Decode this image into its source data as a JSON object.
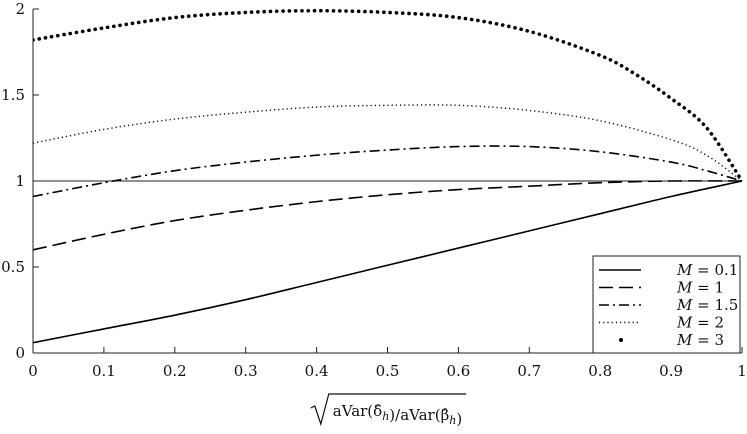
{
  "chart_data": {
    "type": "line",
    "title": "",
    "xlabel": "√(aVar(δ̂_h)/aVar(β̂_h))",
    "xlabel_parts": {
      "inner": "aVar(δ̂",
      "sub1": "h",
      "mid": ")/aVar(β̂",
      "sub2": "h",
      "end": ")"
    },
    "ylabel": "",
    "xlim": [
      0,
      1
    ],
    "ylim": [
      0,
      2
    ],
    "xticks": [
      0,
      0.1,
      0.2,
      0.3,
      0.4,
      0.5,
      0.6,
      0.7,
      0.8,
      0.9,
      1
    ],
    "xtick_labels": [
      "0",
      "0.1",
      "0.2",
      "0.3",
      "0.4",
      "0.5",
      "0.6",
      "0.7",
      "0.8",
      "0.9",
      "1"
    ],
    "yticks": [
      0,
      0.5,
      1,
      1.5,
      2
    ],
    "ytick_labels": [
      "0",
      "0.5",
      "1",
      "1.5",
      "2"
    ],
    "grid": false,
    "legend_position": "bottom-right",
    "reference_line": {
      "y": 1
    },
    "series": [
      {
        "name": "M = 0.1",
        "var": "M",
        "value_label": "0.1",
        "style": "solid",
        "x": [
          0,
          0.1,
          0.2,
          0.3,
          0.4,
          0.5,
          0.6,
          0.7,
          0.8,
          0.9,
          1
        ],
        "y": [
          0.06,
          0.14,
          0.22,
          0.31,
          0.41,
          0.51,
          0.61,
          0.71,
          0.81,
          0.91,
          1.0
        ]
      },
      {
        "name": "M = 1",
        "var": "M",
        "value_label": "1",
        "style": "dashed",
        "x": [
          0,
          0.1,
          0.2,
          0.3,
          0.4,
          0.5,
          0.6,
          0.7,
          0.8,
          0.9,
          1
        ],
        "y": [
          0.6,
          0.69,
          0.77,
          0.83,
          0.88,
          0.92,
          0.95,
          0.97,
          0.99,
          1.0,
          1.0
        ]
      },
      {
        "name": "M = 1.5",
        "var": "M",
        "value_label": "1.5",
        "style": "dashdot",
        "x": [
          0,
          0.1,
          0.2,
          0.3,
          0.4,
          0.5,
          0.6,
          0.7,
          0.8,
          0.9,
          0.95,
          1
        ],
        "y": [
          0.91,
          0.99,
          1.06,
          1.11,
          1.15,
          1.18,
          1.2,
          1.2,
          1.17,
          1.11,
          1.06,
          1.0
        ]
      },
      {
        "name": "M = 2",
        "var": "M",
        "value_label": "2",
        "style": "dotted",
        "x": [
          0,
          0.1,
          0.2,
          0.3,
          0.4,
          0.5,
          0.6,
          0.7,
          0.8,
          0.9,
          0.95,
          1
        ],
        "y": [
          1.22,
          1.3,
          1.36,
          1.4,
          1.43,
          1.44,
          1.44,
          1.41,
          1.35,
          1.24,
          1.15,
          1.0
        ]
      },
      {
        "name": "M = 3",
        "var": "M",
        "value_label": "3",
        "style": "bigdots",
        "x": [
          0,
          0.1,
          0.2,
          0.3,
          0.4,
          0.5,
          0.6,
          0.7,
          0.8,
          0.85,
          0.9,
          0.95,
          1
        ],
        "y": [
          1.82,
          1.89,
          1.95,
          1.98,
          1.99,
          1.98,
          1.95,
          1.87,
          1.73,
          1.62,
          1.48,
          1.31,
          1.0
        ]
      }
    ]
  }
}
